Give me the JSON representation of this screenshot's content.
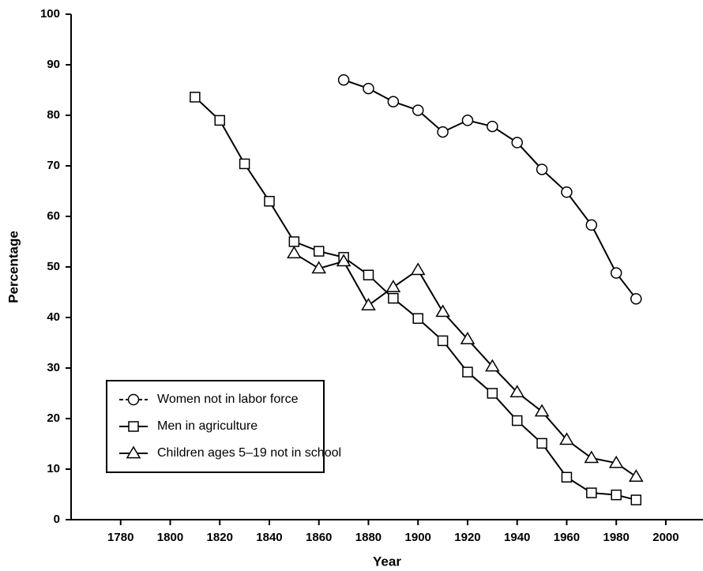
{
  "chart_data": {
    "type": "line",
    "x_label": "Year",
    "y_label": "Percentage",
    "x": [
      1810,
      1820,
      1830,
      1840,
      1850,
      1860,
      1870,
      1880,
      1890,
      1900,
      1910,
      1920,
      1930,
      1940,
      1950,
      1960,
      1970,
      1980,
      1988
    ],
    "series": [
      {
        "name": "Women not in labor force",
        "color": "#000000",
        "marker": "circle",
        "values": [
          null,
          null,
          null,
          null,
          null,
          null,
          87,
          85.3,
          82.7,
          81,
          76.7,
          79,
          77.8,
          74.6,
          69.3,
          64.8,
          58.3,
          48.8,
          43.7
        ]
      },
      {
        "name": "Men in agriculture",
        "color": "#000000",
        "marker": "square",
        "values": [
          83.6,
          79,
          70.4,
          63,
          55,
          53.1,
          51.9,
          48.4,
          43.8,
          39.8,
          35.4,
          29.2,
          25,
          19.6,
          15.1,
          8.4,
          5.3,
          4.9,
          3.9
        ]
      },
      {
        "name": "Children ages 5–19 not in school",
        "color": "#000000",
        "marker": "triangle",
        "values": [
          null,
          null,
          null,
          null,
          52.7,
          49.7,
          51.1,
          42.4,
          46,
          49.4,
          41.1,
          35.7,
          30.3,
          25.2,
          21.4,
          15.8,
          12.2,
          11.2,
          8.5
        ]
      }
    ],
    "xlim": [
      1760,
      2015
    ],
    "xticks": [
      1780,
      1800,
      1820,
      1840,
      1860,
      1880,
      1900,
      1920,
      1940,
      1960,
      1980,
      2000
    ],
    "ylim": [
      0,
      100
    ],
    "yticks": [
      0,
      10,
      20,
      30,
      40,
      50,
      60,
      70,
      80,
      90,
      100
    ],
    "grid": false,
    "legend": "lower left"
  }
}
